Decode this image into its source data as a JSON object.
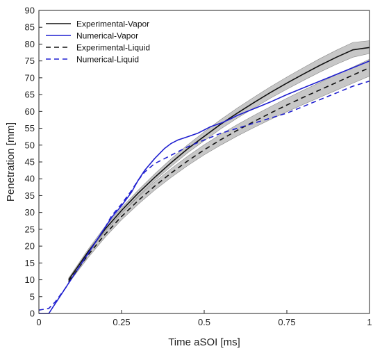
{
  "chart_data": {
    "type": "line",
    "title": "",
    "xlabel": "Time aSOI [ms]",
    "ylabel": "Penetration [mm]",
    "xlim": [
      0,
      1
    ],
    "ylim": [
      0,
      90
    ],
    "xticks": [
      0,
      0.25,
      0.5,
      0.75,
      1
    ],
    "xtick_labels": [
      "0",
      "0.25",
      "0.5",
      "0.75",
      "1"
    ],
    "yticks": [
      0,
      5,
      10,
      15,
      20,
      25,
      30,
      35,
      40,
      45,
      50,
      55,
      60,
      65,
      70,
      75,
      80,
      85,
      90
    ],
    "grid": false,
    "legend_position": "top-left",
    "colors": {
      "experimental": "#111111",
      "numerical": "#1f1fd0",
      "band": "#bdbdbd"
    },
    "series": [
      {
        "name": "Experimental-Vapor",
        "style": "solid",
        "color": "#111111",
        "x": [
          0.09,
          0.15,
          0.2,
          0.25,
          0.3,
          0.35,
          0.4,
          0.45,
          0.5,
          0.55,
          0.6,
          0.65,
          0.7,
          0.75,
          0.8,
          0.85,
          0.9,
          0.95,
          1.0
        ],
        "y": [
          10,
          18.5,
          25,
          30.6,
          35.7,
          40.4,
          44.8,
          48.9,
          52.6,
          56.2,
          59.5,
          62.6,
          65.6,
          68.4,
          71.1,
          73.7,
          76.1,
          78.3,
          79.0
        ],
        "band_low": [
          9.5,
          17.8,
          24.2,
          29.8,
          34.8,
          39.4,
          43.7,
          47.7,
          51.3,
          54.8,
          58.0,
          61.0,
          63.9,
          66.6,
          69.2,
          71.7,
          74.0,
          76.1,
          77.2
        ],
        "band_high": [
          10.5,
          19.2,
          25.8,
          31.4,
          36.6,
          41.4,
          45.9,
          50.1,
          53.9,
          57.6,
          61.0,
          64.2,
          67.3,
          70.2,
          73.0,
          75.7,
          78.2,
          80.5,
          81.0
        ]
      },
      {
        "name": "Numerical-Vapor",
        "style": "solid",
        "color": "#1f1fd0",
        "x": [
          0.0,
          0.03,
          0.04,
          0.06,
          0.08,
          0.1,
          0.12,
          0.15,
          0.18,
          0.2,
          0.22,
          0.25,
          0.28,
          0.3,
          0.32,
          0.35,
          0.38,
          0.4,
          0.42,
          0.45,
          0.48,
          0.5,
          0.52,
          0.55,
          0.58,
          0.6,
          0.65,
          0.7,
          0.75,
          0.8,
          0.85,
          0.9,
          0.95,
          1.0
        ],
        "y": [
          0,
          0,
          1.5,
          4.5,
          7.5,
          10.5,
          13.5,
          18,
          22.5,
          25.5,
          28.5,
          32,
          36,
          39.5,
          42.5,
          46,
          49,
          50.5,
          51.5,
          52.5,
          53.5,
          54.5,
          55.5,
          56.5,
          57.8,
          58.8,
          60.8,
          62.8,
          65,
          67,
          69,
          71,
          73,
          75
        ]
      },
      {
        "name": "Experimental-Liquid",
        "style": "dashed",
        "color": "#111111",
        "x": [
          0.09,
          0.15,
          0.2,
          0.25,
          0.3,
          0.35,
          0.4,
          0.45,
          0.5,
          0.55,
          0.6,
          0.65,
          0.7,
          0.75,
          0.8,
          0.85,
          0.9,
          0.95,
          1.0
        ],
        "y": [
          9.5,
          17.5,
          23.5,
          28.8,
          33.5,
          37.8,
          41.7,
          45.3,
          48.6,
          51.6,
          54.4,
          57.0,
          59.5,
          61.9,
          64.2,
          66.4,
          68.6,
          70.8,
          73.0
        ],
        "band_low": [
          9.0,
          16.7,
          22.6,
          27.8,
          32.4,
          36.6,
          40.4,
          43.9,
          47.1,
          50.0,
          52.7,
          55.2,
          57.6,
          59.9,
          62.1,
          64.2,
          66.3,
          68.4,
          70.5
        ],
        "band_high": [
          10.0,
          18.3,
          24.4,
          29.8,
          34.6,
          39.0,
          43.0,
          46.7,
          50.1,
          53.2,
          56.1,
          58.8,
          61.4,
          63.9,
          66.3,
          68.6,
          70.9,
          73.2,
          75.5
        ]
      },
      {
        "name": "Numerical-Liquid",
        "style": "dashed",
        "color": "#1f1fd0",
        "x": [
          0.0,
          0.03,
          0.05,
          0.08,
          0.1,
          0.12,
          0.15,
          0.18,
          0.2,
          0.22,
          0.25,
          0.28,
          0.3,
          0.32,
          0.35,
          0.38,
          0.4,
          0.45,
          0.5,
          0.55,
          0.6,
          0.65,
          0.7,
          0.75,
          0.8,
          0.85,
          0.9,
          0.95,
          1.0
        ],
        "y": [
          1.0,
          1.5,
          3.5,
          7.5,
          10.5,
          13.5,
          18,
          22.5,
          25.5,
          29,
          32.5,
          36.5,
          39.5,
          42,
          44.5,
          46,
          47,
          49.5,
          51.5,
          53.5,
          55,
          56.5,
          58,
          59.5,
          61.5,
          63.5,
          65.5,
          67.5,
          69
        ]
      }
    ]
  }
}
